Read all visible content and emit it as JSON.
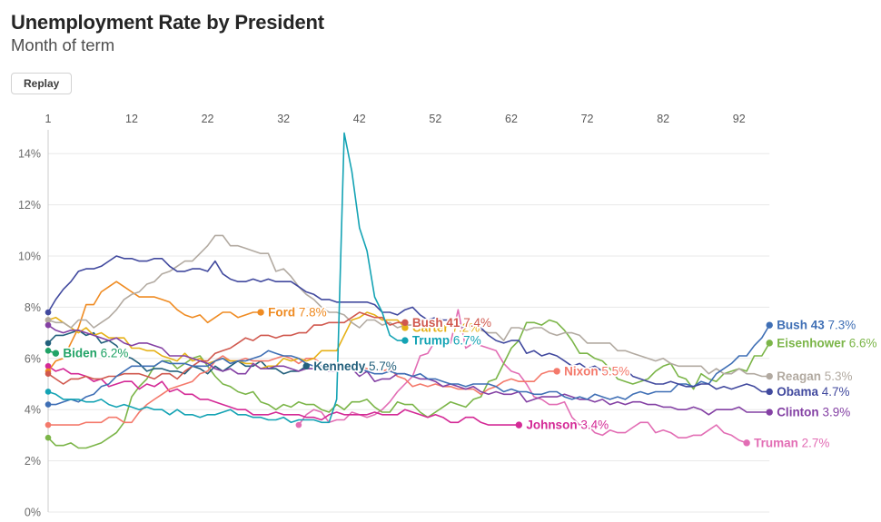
{
  "page": {
    "title": "Unemployment Rate by President",
    "subtitle": "Month of term",
    "replay_label": "Replay"
  },
  "chart_data": {
    "type": "line",
    "title": "Unemployment Rate by President",
    "subtitle": "Month of term",
    "xlabel": "Month of term",
    "ylabel": "Unemployment rate",
    "x_axis_position": "top",
    "grid": "horizontal-only",
    "legend": "inline-end-labels",
    "xlim": [
      1,
      96
    ],
    "ylim": [
      0,
      14.8
    ],
    "x_ticks": [
      1,
      12,
      22,
      32,
      42,
      52,
      62,
      72,
      82,
      92
    ],
    "y_ticks": [
      {
        "value": 0,
        "label": "0%"
      },
      {
        "value": 2,
        "label": "2%"
      },
      {
        "value": 4,
        "label": "4%"
      },
      {
        "value": 6,
        "label": "6%"
      },
      {
        "value": 8,
        "label": "8%"
      },
      {
        "value": 10,
        "label": "10%"
      },
      {
        "value": 12,
        "label": "12%"
      },
      {
        "value": 14,
        "label": "14%"
      }
    ],
    "series": [
      {
        "id": "truman",
        "name": "Truman",
        "color": "#e26db4",
        "final_label": "2.7%",
        "start_month": 34,
        "values": [
          3.4,
          3.8,
          4.0,
          3.9,
          3.5,
          3.6,
          3.6,
          3.9,
          3.8,
          3.7,
          3.8,
          4.0,
          4.3,
          4.7,
          5.0,
          5.3,
          6.1,
          6.2,
          6.7,
          6.8,
          6.6,
          7.9,
          6.4,
          6.6,
          6.5,
          6.4,
          6.3,
          5.8,
          5.5,
          5.4,
          5.0,
          4.5,
          4.4,
          4.2,
          4.2,
          4.3,
          3.7,
          3.4,
          3.4,
          3.1,
          3.0,
          3.2,
          3.1,
          3.1,
          3.3,
          3.5,
          3.5,
          3.1,
          3.2,
          3.1,
          2.9,
          2.9,
          3.0,
          3.0,
          3.2,
          3.4,
          3.1,
          3.0,
          2.8,
          2.7
        ]
      },
      {
        "id": "eisenhower",
        "name": "Eisenhower",
        "color": "#7bb548",
        "final_label": "6.6%",
        "start_month": 1,
        "values": [
          2.9,
          2.6,
          2.6,
          2.7,
          2.5,
          2.5,
          2.6,
          2.7,
          2.9,
          3.1,
          3.5,
          4.5,
          4.9,
          5.2,
          5.7,
          5.9,
          5.9,
          5.6,
          5.8,
          6.0,
          6.1,
          5.7,
          5.3,
          5.0,
          4.9,
          4.7,
          4.6,
          4.7,
          4.3,
          4.2,
          4.0,
          4.2,
          4.1,
          4.3,
          4.2,
          4.2,
          4.0,
          3.9,
          4.2,
          4.0,
          4.3,
          4.3,
          4.4,
          4.1,
          3.9,
          3.9,
          4.3,
          4.2,
          4.2,
          3.9,
          3.7,
          3.9,
          4.1,
          4.3,
          4.2,
          4.1,
          4.4,
          4.5,
          5.1,
          5.2,
          5.8,
          6.4,
          6.7,
          7.4,
          7.4,
          7.3,
          7.5,
          7.4,
          7.1,
          6.7,
          6.2,
          6.2,
          6.0,
          5.9,
          5.6,
          5.2,
          5.1,
          5.0,
          5.1,
          5.2,
          5.5,
          5.7,
          5.8,
          5.3,
          5.2,
          4.8,
          5.4,
          5.2,
          5.1,
          5.4,
          5.5,
          5.6,
          5.5,
          6.1,
          6.1,
          6.6
        ]
      },
      {
        "id": "kennedy",
        "name": "Kennedy",
        "color": "#23607c",
        "final_label": "5.7%",
        "start_month": 1,
        "values": [
          6.6,
          6.9,
          6.9,
          7.0,
          7.1,
          6.9,
          7.0,
          6.6,
          6.7,
          6.5,
          6.1,
          6.0,
          5.8,
          5.5,
          5.6,
          5.6,
          5.5,
          5.5,
          5.4,
          5.7,
          5.6,
          5.4,
          5.7,
          5.5,
          5.7,
          5.9,
          5.7,
          5.7,
          5.9,
          5.6,
          5.6,
          5.4,
          5.5,
          5.5,
          5.7
        ]
      },
      {
        "id": "johnson",
        "name": "Johnson",
        "color": "#d42a96",
        "final_label": "3.4%",
        "start_month": 1,
        "values": [
          5.7,
          5.5,
          5.6,
          5.4,
          5.4,
          5.3,
          5.1,
          5.2,
          4.9,
          5.0,
          5.1,
          5.1,
          4.8,
          5.0,
          4.9,
          5.1,
          4.7,
          4.8,
          4.6,
          4.6,
          4.4,
          4.4,
          4.3,
          4.2,
          4.1,
          4.0,
          4.0,
          3.8,
          3.8,
          3.8,
          3.9,
          3.8,
          3.8,
          3.8,
          3.7,
          3.7,
          3.6,
          3.8,
          3.9,
          3.8,
          3.8,
          3.8,
          3.8,
          3.9,
          3.8,
          3.8,
          3.8,
          4.0,
          3.9,
          3.8,
          3.7,
          3.8,
          3.7,
          3.5,
          3.5,
          3.7,
          3.7,
          3.5,
          3.4,
          3.4,
          3.4,
          3.4,
          3.4
        ]
      },
      {
        "id": "nixon",
        "name": "Nixon",
        "color": "#f4796b",
        "final_label": "5.5%",
        "start_month": 1,
        "values": [
          3.4,
          3.4,
          3.4,
          3.4,
          3.4,
          3.5,
          3.5,
          3.5,
          3.7,
          3.7,
          3.5,
          3.5,
          3.9,
          4.2,
          4.4,
          4.6,
          4.8,
          4.9,
          5.0,
          5.1,
          5.4,
          5.5,
          5.9,
          6.1,
          5.9,
          5.9,
          6.0,
          5.9,
          5.9,
          5.9,
          6.0,
          6.1,
          6.0,
          5.8,
          6.0,
          6.0,
          5.8,
          5.7,
          5.8,
          5.7,
          5.7,
          5.7,
          5.6,
          5.6,
          5.5,
          5.6,
          5.3,
          5.2,
          4.9,
          5.0,
          4.9,
          5.0,
          4.9,
          4.9,
          4.8,
          4.8,
          4.8,
          4.6,
          4.8,
          4.9,
          5.1,
          5.2,
          5.1,
          5.1,
          5.1,
          5.4,
          5.5,
          5.5
        ]
      },
      {
        "id": "ford",
        "name": "Ford",
        "color": "#ef8b22",
        "final_label": "7.8%",
        "start_month": 1,
        "values": [
          5.5,
          5.9,
          6.0,
          6.6,
          7.2,
          8.1,
          8.1,
          8.6,
          8.8,
          9.0,
          8.8,
          8.6,
          8.4,
          8.4,
          8.4,
          8.3,
          8.2,
          7.9,
          7.7,
          7.6,
          7.7,
          7.4,
          7.6,
          7.8,
          7.8,
          7.6,
          7.7,
          7.8,
          7.8
        ]
      },
      {
        "id": "carter",
        "name": "Carter",
        "color": "#e6b117",
        "final_label": "7.2%",
        "start_month": 1,
        "values": [
          7.5,
          7.6,
          7.4,
          7.2,
          7.0,
          7.2,
          6.9,
          7.0,
          6.8,
          6.8,
          6.8,
          6.4,
          6.4,
          6.3,
          6.3,
          6.1,
          6.0,
          5.9,
          6.2,
          5.9,
          6.0,
          5.8,
          5.9,
          6.0,
          5.9,
          5.9,
          5.8,
          5.8,
          5.6,
          5.7,
          5.7,
          6.0,
          5.9,
          6.0,
          5.9,
          6.0,
          6.3,
          6.3,
          6.3,
          6.9,
          7.5,
          7.6,
          7.8,
          7.7,
          7.5,
          7.5,
          7.5,
          7.2
        ]
      },
      {
        "id": "reagan",
        "name": "Reagan",
        "color": "#b2aaa1",
        "final_label": "5.3%",
        "start_month": 1,
        "values": [
          7.5,
          7.4,
          7.4,
          7.2,
          7.5,
          7.5,
          7.2,
          7.4,
          7.6,
          7.9,
          8.3,
          8.5,
          8.6,
          8.9,
          9.0,
          9.3,
          9.4,
          9.6,
          9.8,
          9.8,
          10.1,
          10.4,
          10.8,
          10.8,
          10.4,
          10.4,
          10.3,
          10.2,
          10.1,
          10.1,
          9.4,
          9.5,
          9.2,
          8.8,
          8.5,
          8.3,
          8.0,
          7.8,
          7.8,
          7.7,
          7.4,
          7.2,
          7.5,
          7.5,
          7.3,
          7.4,
          7.2,
          7.3,
          7.3,
          7.2,
          7.2,
          7.3,
          7.2,
          7.4,
          7.4,
          7.1,
          7.1,
          7.1,
          7.0,
          7.0,
          6.7,
          7.2,
          7.2,
          7.1,
          7.2,
          7.2,
          7.0,
          6.9,
          7.0,
          7.0,
          6.9,
          6.6,
          6.6,
          6.6,
          6.6,
          6.3,
          6.3,
          6.2,
          6.1,
          6.0,
          5.9,
          6.0,
          5.8,
          5.7,
          5.7,
          5.7,
          5.7,
          5.4,
          5.6,
          5.4,
          5.4,
          5.6,
          5.4,
          5.4,
          5.3,
          5.3
        ]
      },
      {
        "id": "bush41",
        "name": "Bush 41",
        "color": "#d0584e",
        "final_label": "7.4%",
        "start_month": 1,
        "values": [
          5.4,
          5.2,
          5.0,
          5.2,
          5.2,
          5.3,
          5.2,
          5.2,
          5.3,
          5.3,
          5.4,
          5.4,
          5.4,
          5.3,
          5.2,
          5.4,
          5.4,
          5.2,
          5.5,
          5.7,
          5.9,
          5.9,
          6.2,
          6.3,
          6.4,
          6.6,
          6.8,
          6.7,
          6.9,
          6.9,
          6.8,
          6.9,
          6.9,
          7.0,
          7.0,
          7.3,
          7.3,
          7.4,
          7.4,
          7.4,
          7.6,
          7.8,
          7.7,
          7.6,
          7.6,
          7.3,
          7.4,
          7.4
        ]
      },
      {
        "id": "clinton",
        "name": "Clinton",
        "color": "#8441a4",
        "final_label": "3.9%",
        "start_month": 1,
        "values": [
          7.3,
          7.1,
          7.0,
          7.1,
          7.1,
          7.0,
          6.9,
          6.8,
          6.7,
          6.8,
          6.6,
          6.5,
          6.6,
          6.6,
          6.5,
          6.4,
          6.1,
          6.1,
          6.1,
          6.0,
          5.9,
          5.8,
          5.6,
          5.5,
          5.6,
          5.4,
          5.4,
          5.8,
          5.6,
          5.6,
          5.7,
          5.7,
          5.6,
          5.5,
          5.6,
          5.6,
          5.6,
          5.5,
          5.5,
          5.6,
          5.6,
          5.3,
          5.5,
          5.1,
          5.2,
          5.2,
          5.4,
          5.4,
          5.3,
          5.2,
          5.2,
          5.1,
          4.9,
          5.0,
          4.9,
          4.8,
          4.9,
          4.7,
          4.6,
          4.7,
          4.6,
          4.6,
          4.7,
          4.3,
          4.4,
          4.5,
          4.5,
          4.5,
          4.6,
          4.5,
          4.4,
          4.4,
          4.3,
          4.4,
          4.2,
          4.3,
          4.2,
          4.3,
          4.3,
          4.2,
          4.2,
          4.1,
          4.1,
          4.0,
          4.0,
          4.1,
          4.0,
          3.8,
          4.0,
          4.0,
          4.0,
          4.1,
          3.9,
          3.9,
          3.9,
          3.9
        ]
      },
      {
        "id": "bush43",
        "name": "Bush 43",
        "color": "#3f6fb5",
        "final_label": "7.3%",
        "start_month": 1,
        "values": [
          4.2,
          4.2,
          4.3,
          4.4,
          4.3,
          4.5,
          4.6,
          4.9,
          5.0,
          5.3,
          5.5,
          5.7,
          5.7,
          5.7,
          5.7,
          5.9,
          5.8,
          5.8,
          5.8,
          5.7,
          5.7,
          5.7,
          5.9,
          6.0,
          5.8,
          5.9,
          5.9,
          6.0,
          6.1,
          6.3,
          6.2,
          6.1,
          6.1,
          6.0,
          5.8,
          5.7,
          5.7,
          5.6,
          5.8,
          5.6,
          5.6,
          5.6,
          5.5,
          5.4,
          5.4,
          5.5,
          5.4,
          5.4,
          5.3,
          5.4,
          5.2,
          5.2,
          5.1,
          5.0,
          5.0,
          4.9,
          5.0,
          5.0,
          5.0,
          4.9,
          4.7,
          4.8,
          4.7,
          4.7,
          4.6,
          4.6,
          4.7,
          4.7,
          4.5,
          4.4,
          4.5,
          4.4,
          4.6,
          4.5,
          4.4,
          4.5,
          4.4,
          4.6,
          4.7,
          4.6,
          4.7,
          4.7,
          4.7,
          5.0,
          5.0,
          4.9,
          5.1,
          5.0,
          5.4,
          5.6,
          5.8,
          6.1,
          6.1,
          6.5,
          6.8,
          7.3
        ]
      },
      {
        "id": "obama",
        "name": "Obama",
        "color": "#41499e",
        "final_label": "4.7%",
        "start_month": 1,
        "values": [
          7.8,
          8.3,
          8.7,
          9.0,
          9.4,
          9.5,
          9.5,
          9.6,
          9.8,
          10.0,
          9.9,
          9.9,
          9.8,
          9.8,
          9.9,
          9.9,
          9.6,
          9.4,
          9.4,
          9.5,
          9.5,
          9.4,
          9.8,
          9.3,
          9.1,
          9.0,
          9.0,
          9.1,
          9.0,
          9.1,
          9.0,
          9.0,
          9.0,
          8.8,
          8.6,
          8.5,
          8.3,
          8.3,
          8.2,
          8.2,
          8.2,
          8.2,
          8.2,
          8.1,
          7.8,
          7.8,
          7.7,
          7.9,
          8.0,
          7.7,
          7.5,
          7.6,
          7.5,
          7.5,
          7.3,
          7.2,
          7.2,
          7.2,
          6.9,
          6.7,
          6.6,
          6.7,
          6.7,
          6.2,
          6.3,
          6.1,
          6.2,
          6.1,
          5.9,
          5.7,
          5.8,
          5.6,
          5.7,
          5.5,
          5.4,
          5.4,
          5.6,
          5.3,
          5.2,
          5.1,
          5.0,
          5.0,
          5.1,
          5.0,
          4.9,
          4.9,
          5.0,
          5.0,
          4.8,
          4.9,
          4.8,
          4.9,
          5.0,
          4.9,
          4.7,
          4.7
        ]
      },
      {
        "id": "trump",
        "name": "Trump",
        "color": "#14a3b4",
        "final_label": "6.7%",
        "start_month": 1,
        "values": [
          4.7,
          4.6,
          4.4,
          4.4,
          4.4,
          4.3,
          4.3,
          4.4,
          4.2,
          4.1,
          4.2,
          4.1,
          4.0,
          4.1,
          4.0,
          4.0,
          3.8,
          4.0,
          3.8,
          3.8,
          3.7,
          3.8,
          3.8,
          3.9,
          4.0,
          3.8,
          3.8,
          3.7,
          3.7,
          3.6,
          3.6,
          3.7,
          3.5,
          3.6,
          3.6,
          3.6,
          3.5,
          3.5,
          4.4,
          14.8,
          13.3,
          11.1,
          10.2,
          8.4,
          7.8,
          6.9,
          6.7,
          6.7
        ]
      },
      {
        "id": "biden",
        "name": "Biden",
        "color": "#21a366",
        "final_label": "6.2%",
        "start_month": 1,
        "values": [
          6.3,
          6.2
        ]
      }
    ]
  }
}
